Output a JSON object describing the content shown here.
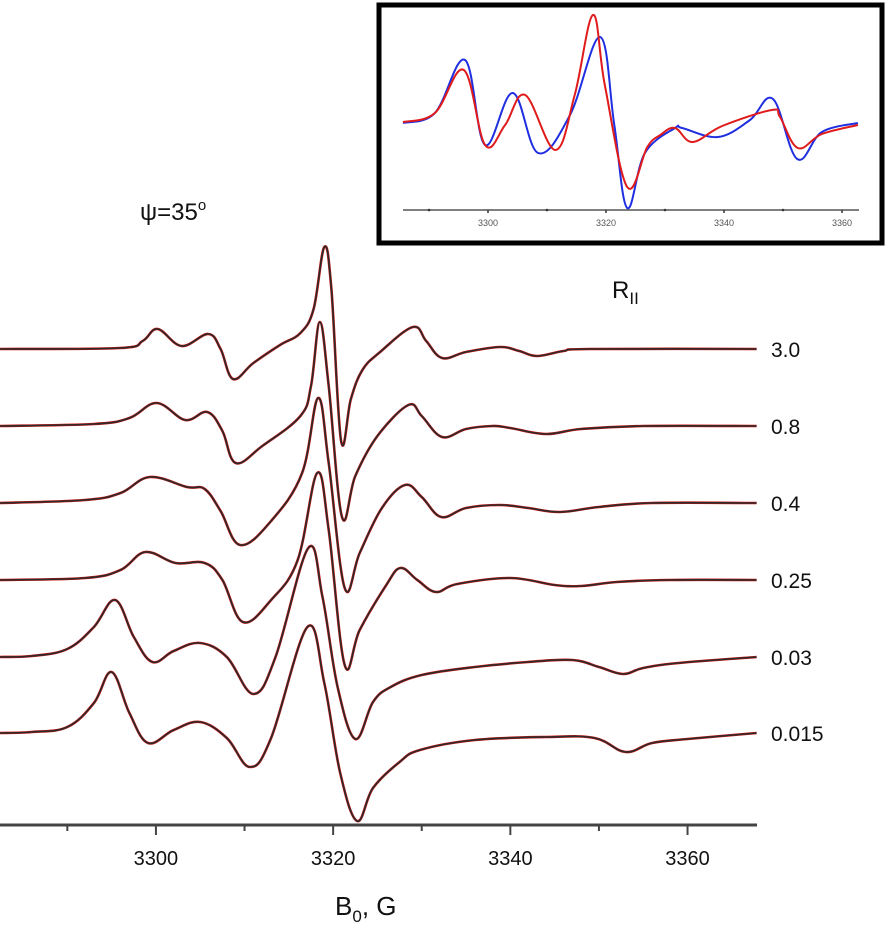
{
  "chart_data": {
    "type": "line",
    "title": "ψ=35°",
    "title_parts": {
      "main": "ψ=35",
      "sup": "o"
    },
    "xlabel": "B0, G",
    "xlabel_parts": {
      "main": "B",
      "sub": "0",
      "rest": ", G"
    },
    "ylabel": "",
    "xlim": [
      3282.4,
      3367.8
    ],
    "xticks": [
      3300,
      3320,
      3340,
      3360
    ],
    "xticks_minor": [
      3290,
      3310,
      3330,
      3350
    ],
    "grid": false,
    "legend_title": "RII",
    "legend_title_parts": {
      "main": "R",
      "sub": "II"
    },
    "series_colors": {
      "experimental": "#2b2b2b",
      "simulated": "#cc1111"
    },
    "series": [
      {
        "name": "3.0",
        "offset": 476,
        "points": [
          [
            3282.4,
            0
          ],
          [
            3295.9,
            1
          ],
          [
            3298.5,
            8
          ],
          [
            3300.2,
            20
          ],
          [
            3302.9,
            3
          ],
          [
            3305.9,
            15
          ],
          [
            3307.3,
            0
          ],
          [
            3308.7,
            -30
          ],
          [
            3311,
            -14
          ],
          [
            3314,
            4
          ],
          [
            3316.3,
            16
          ],
          [
            3317.8,
            40
          ],
          [
            3319.0,
            102
          ],
          [
            3319.8,
            60
          ],
          [
            3320.9,
            -92
          ],
          [
            3322,
            -50
          ],
          [
            3323.3,
            -21
          ],
          [
            3325.3,
            -3
          ],
          [
            3329.0,
            22
          ],
          [
            3330.5,
            8
          ],
          [
            3332.3,
            -9
          ],
          [
            3335,
            -3
          ],
          [
            3338.8,
            2
          ],
          [
            3341,
            -2
          ],
          [
            3343.0,
            -7
          ],
          [
            3346,
            -2
          ],
          [
            3349,
            0
          ],
          [
            3367.8,
            0
          ]
        ]
      },
      {
        "name": "0.8",
        "offset": 399,
        "points": [
          [
            3282.4,
            0
          ],
          [
            3293,
            2
          ],
          [
            3297,
            8
          ],
          [
            3300.1,
            23
          ],
          [
            3303.3,
            6
          ],
          [
            3305.8,
            14
          ],
          [
            3307.5,
            -5
          ],
          [
            3309.0,
            -37
          ],
          [
            3312,
            -20
          ],
          [
            3316.3,
            10
          ],
          [
            3317.5,
            40
          ],
          [
            3318.5,
            104
          ],
          [
            3319.5,
            40
          ],
          [
            3321.0,
            -91
          ],
          [
            3322.5,
            -50
          ],
          [
            3325,
            -10
          ],
          [
            3328.5,
            21
          ],
          [
            3330,
            10
          ],
          [
            3332.3,
            -11
          ],
          [
            3335,
            -3
          ],
          [
            3338,
            0
          ],
          [
            3340,
            -2
          ],
          [
            3344,
            -8
          ],
          [
            3348,
            -3
          ],
          [
            3355,
            0
          ],
          [
            3367.8,
            0
          ]
        ]
      },
      {
        "name": "0.4",
        "offset": 322,
        "points": [
          [
            3282.4,
            0
          ],
          [
            3292,
            3
          ],
          [
            3296,
            10
          ],
          [
            3299.3,
            26
          ],
          [
            3303.5,
            16
          ],
          [
            3305.5,
            14
          ],
          [
            3307.3,
            -8
          ],
          [
            3309.5,
            -42
          ],
          [
            3313,
            -18
          ],
          [
            3316.5,
            30
          ],
          [
            3318.3,
            105
          ],
          [
            3319.5,
            40
          ],
          [
            3321.3,
            -85
          ],
          [
            3323,
            -50
          ],
          [
            3325.5,
            -5
          ],
          [
            3328.1,
            18
          ],
          [
            3330,
            6
          ],
          [
            3332.2,
            -14
          ],
          [
            3335,
            -5
          ],
          [
            3338.8,
            -2
          ],
          [
            3342,
            -5
          ],
          [
            3345.6,
            -9
          ],
          [
            3350,
            -4
          ],
          [
            3356,
            0
          ],
          [
            3367.8,
            0
          ]
        ]
      },
      {
        "name": "0.25",
        "offset": 245,
        "points": [
          [
            3282.4,
            0
          ],
          [
            3292,
            2
          ],
          [
            3296,
            10
          ],
          [
            3298.8,
            28
          ],
          [
            3302.2,
            17
          ],
          [
            3305.5,
            17
          ],
          [
            3307.5,
            0
          ],
          [
            3309.8,
            -42
          ],
          [
            3313,
            -20
          ],
          [
            3316,
            20
          ],
          [
            3318.2,
            107
          ],
          [
            3319.5,
            50
          ],
          [
            3321.3,
            -85
          ],
          [
            3323,
            -50
          ],
          [
            3326,
            -5
          ],
          [
            3327.6,
            12
          ],
          [
            3329.5,
            0
          ],
          [
            3331.6,
            -12
          ],
          [
            3334,
            -4
          ],
          [
            3340,
            2
          ],
          [
            3345,
            -5
          ],
          [
            3348,
            -6
          ],
          [
            3352,
            -2
          ],
          [
            3358,
            0
          ],
          [
            3367.8,
            0
          ]
        ]
      },
      {
        "name": "0.03",
        "offset": 168,
        "points": [
          [
            3282.4,
            0
          ],
          [
            3286,
            1
          ],
          [
            3290,
            8
          ],
          [
            3293,
            30
          ],
          [
            3295.4,
            57
          ],
          [
            3297.5,
            20
          ],
          [
            3299.6,
            -5
          ],
          [
            3302,
            6
          ],
          [
            3305,
            14
          ],
          [
            3308,
            0
          ],
          [
            3311,
            -37
          ],
          [
            3313.5,
            0
          ],
          [
            3317.2,
            109
          ],
          [
            3318.8,
            60
          ],
          [
            3320.5,
            -30
          ],
          [
            3322.5,
            -82
          ],
          [
            3324.5,
            -45
          ],
          [
            3326.5,
            -30
          ],
          [
            3330,
            -18
          ],
          [
            3336,
            -10
          ],
          [
            3342,
            -5
          ],
          [
            3347,
            -3
          ],
          [
            3350,
            -10
          ],
          [
            3352.7,
            -17
          ],
          [
            3355,
            -11
          ],
          [
            3359,
            -6
          ],
          [
            3367.8,
            0
          ]
        ]
      },
      {
        "name": "0.015",
        "offset": 92,
        "points": [
          [
            3282.4,
            0
          ],
          [
            3286,
            1
          ],
          [
            3290,
            6
          ],
          [
            3293,
            30
          ],
          [
            3295.0,
            61
          ],
          [
            3297,
            20
          ],
          [
            3299.1,
            -10
          ],
          [
            3302,
            3
          ],
          [
            3305,
            11
          ],
          [
            3308,
            -5
          ],
          [
            3310.6,
            -34
          ],
          [
            3313,
            -5
          ],
          [
            3317.1,
            106
          ],
          [
            3319,
            50
          ],
          [
            3320.8,
            -40
          ],
          [
            3322.7,
            -88
          ],
          [
            3324.5,
            -55
          ],
          [
            3327.5,
            -29
          ],
          [
            3329.8,
            -17
          ],
          [
            3336,
            -7
          ],
          [
            3344,
            -4
          ],
          [
            3349.5,
            -5
          ],
          [
            3353,
            -19
          ],
          [
            3356,
            -10
          ],
          [
            3360,
            -6
          ],
          [
            3367.8,
            0
          ]
        ]
      }
    ],
    "inset": {
      "type": "line",
      "xlim": [
        3285.6,
        3362.9
      ],
      "xticks": [
        3300,
        3320,
        3340,
        3360
      ],
      "xticks_minor": [
        3290,
        3310,
        3330,
        3350
      ],
      "series": [
        {
          "name": "blue",
          "color": "#1f2fe0",
          "points": [
            [
              3285.6,
              2
            ],
            [
              3291,
              12
            ],
            [
              3296.1,
              65
            ],
            [
              3299.5,
              -20
            ],
            [
              3304.2,
              32
            ],
            [
              3308.5,
              -28
            ],
            [
              3313.9,
              10
            ],
            [
              3319.0,
              88
            ],
            [
              3321.4,
              0
            ],
            [
              3323.6,
              -83
            ],
            [
              3326.6,
              -28
            ],
            [
              3331.7,
              -3
            ],
            [
              3332.9,
              -3
            ],
            [
              3339,
              -12
            ],
            [
              3344.4,
              5
            ],
            [
              3348.3,
              26
            ],
            [
              3352.4,
              -34
            ],
            [
              3356.6,
              -7
            ],
            [
              3362.7,
              2
            ]
          ]
        },
        {
          "name": "red",
          "color": "#e01b1b",
          "points": [
            [
              3285.6,
              3
            ],
            [
              3291,
              12
            ],
            [
              3295.9,
              55
            ],
            [
              3299.5,
              -20
            ],
            [
              3302.9,
              0
            ],
            [
              3306.3,
              30
            ],
            [
              3311.4,
              -25
            ],
            [
              3314.7,
              30
            ],
            [
              3317.8,
              110
            ],
            [
              3319.8,
              40
            ],
            [
              3323.6,
              -62
            ],
            [
              3327,
              -22
            ],
            [
              3329.2,
              -10
            ],
            [
              3331.7,
              -3
            ],
            [
              3334.7,
              -17
            ],
            [
              3339.7,
              -1
            ],
            [
              3348.1,
              15
            ],
            [
              3349.5,
              8
            ],
            [
              3352.5,
              -23
            ],
            [
              3356.6,
              -9
            ],
            [
              3362.7,
              0
            ]
          ]
        }
      ]
    }
  }
}
